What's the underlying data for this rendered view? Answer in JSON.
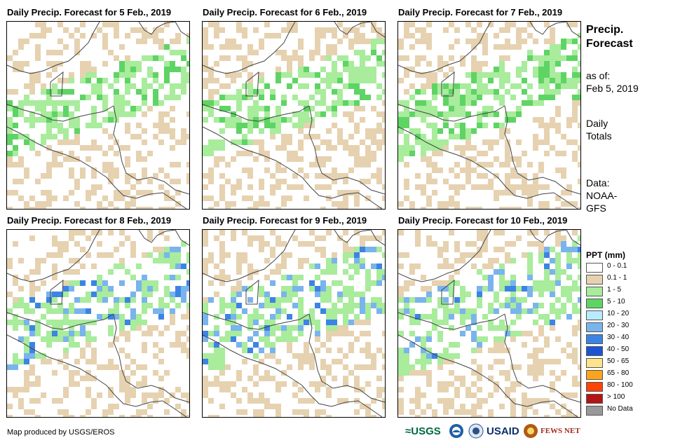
{
  "panels": [
    {
      "title": "Daily Precip. Forecast for 5 Feb., 2019",
      "seed": 5
    },
    {
      "title": "Daily Precip. Forecast for 6 Feb., 2019",
      "seed": 6
    },
    {
      "title": "Daily Precip. Forecast for 7 Feb., 2019",
      "seed": 7
    },
    {
      "title": "Daily Precip. Forecast for 8 Feb., 2019",
      "seed": 8
    },
    {
      "title": "Daily Precip. Forecast for 9 Feb., 2019",
      "seed": 9
    },
    {
      "title": "Daily Precip. Forecast for 10 Feb., 2019",
      "seed": 10
    }
  ],
  "side": {
    "title_line1": "Precip.",
    "title_line2": "Forecast",
    "asof_line1": "as of:",
    "asof_line2": "Feb 5, 2019",
    "totals_line1": "Daily",
    "totals_line2": "Totals",
    "data_line1": "Data:",
    "data_line2": "NOAA-",
    "data_line3": "GFS"
  },
  "legend": {
    "title": "PPT (mm)",
    "items": [
      {
        "label": "0 - 0.1",
        "color": "#ffffff"
      },
      {
        "label": "0.1 - 1",
        "color": "#e6d2b0"
      },
      {
        "label": "1 - 5",
        "color": "#a8ec9c"
      },
      {
        "label": "5 - 10",
        "color": "#5ed464"
      },
      {
        "label": "10 - 20",
        "color": "#b8ecfc"
      },
      {
        "label": "20 - 30",
        "color": "#7ab4ec"
      },
      {
        "label": "30 - 40",
        "color": "#3c84e4"
      },
      {
        "label": "40 - 50",
        "color": "#1c54d4"
      },
      {
        "label": "50 - 65",
        "color": "#fce48c"
      },
      {
        "label": "65 - 80",
        "color": "#fca41c"
      },
      {
        "label": "80 - 100",
        "color": "#fc4404"
      },
      {
        "label": "> 100",
        "color": "#b41414"
      },
      {
        "label": "No Data",
        "color": "#999999"
      }
    ]
  },
  "footer": {
    "credit": "Map produced by USGS/EROS",
    "logo_usgs": "≈USGS",
    "logo_usaid": "USAID",
    "logo_fews": "FEWS NET"
  }
}
